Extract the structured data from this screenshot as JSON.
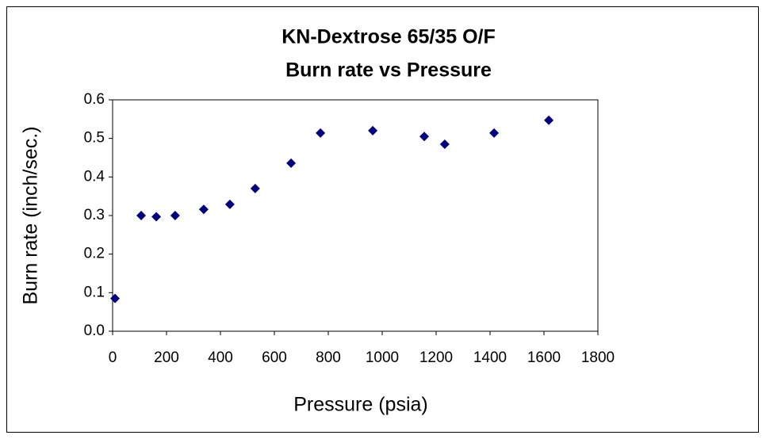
{
  "chart_data": {
    "type": "scatter",
    "title": [
      "KN-Dextrose 65/35 O/F",
      "Burn rate vs Pressure"
    ],
    "x_label": "Pressure (psia)",
    "y_label": "Burn rate (inch/sec.)",
    "color": "#000080",
    "x": [
      9,
      106,
      162,
      232,
      338,
      435,
      529,
      662,
      771,
      965,
      1156,
      1232,
      1415,
      1618
    ],
    "values": [
      0.085,
      0.3,
      0.297,
      0.3,
      0.316,
      0.329,
      0.37,
      0.436,
      0.514,
      0.52,
      0.505,
      0.485,
      0.514,
      0.547
    ],
    "xlim": [
      0,
      1800
    ],
    "xticks": [
      0,
      200,
      400,
      600,
      800,
      1000,
      1200,
      1400,
      1600,
      1800
    ],
    "ylim": [
      0,
      0.6
    ],
    "yticks": [
      {
        "value": 0,
        "label": "0.0"
      },
      0.1,
      0.2,
      0.3,
      0.4,
      0.5,
      0.6
    ]
  }
}
